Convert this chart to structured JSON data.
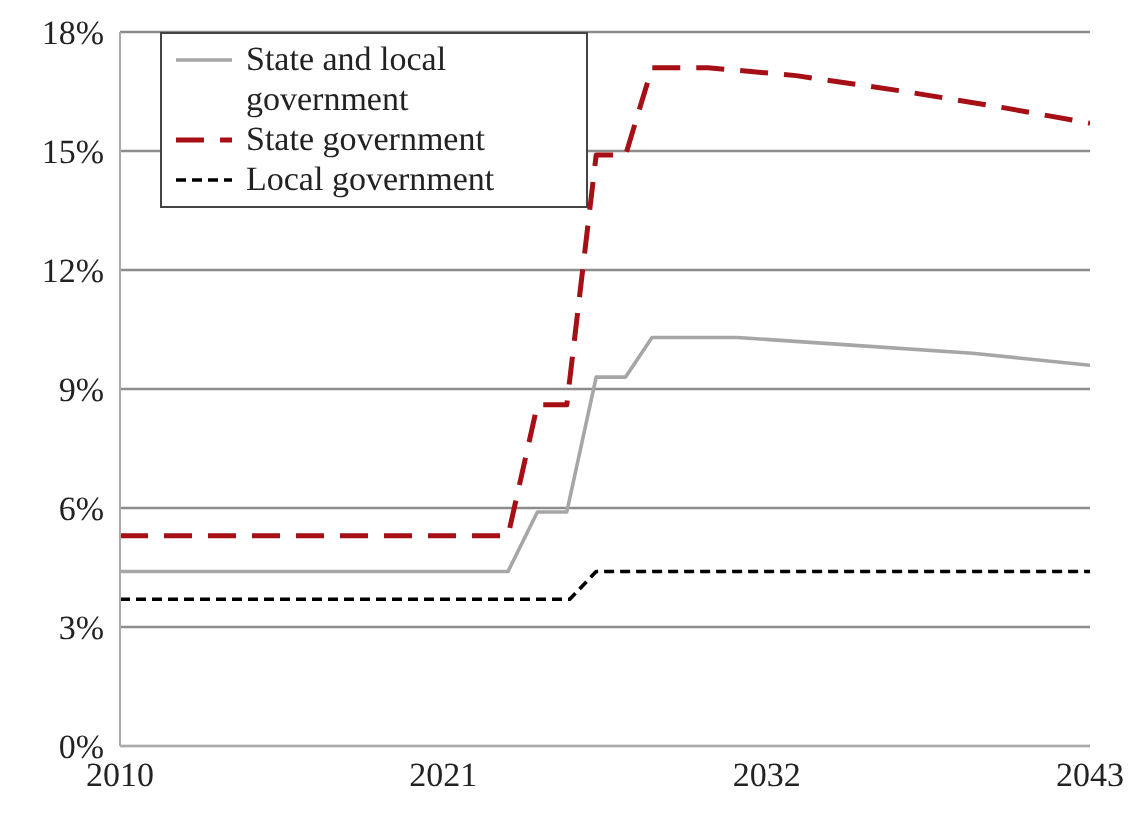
{
  "chart_data": {
    "type": "line",
    "xlim": [
      2010,
      2043
    ],
    "xticks": [
      2010,
      2021,
      2032,
      2043
    ],
    "ylim": [
      0,
      18
    ],
    "yticks": [
      {
        "value": 0,
        "label": "0%"
      },
      {
        "value": 3,
        "label": "3%"
      },
      {
        "value": 6,
        "label": "6%"
      },
      {
        "value": 9,
        "label": "9%"
      },
      {
        "value": 12,
        "label": "12%"
      },
      {
        "value": 15,
        "label": "15%"
      },
      {
        "value": 18,
        "label": "18%"
      }
    ],
    "grid": "y",
    "legend": "top left",
    "series": [
      {
        "name": "State and local government",
        "color": "#a6a6a6",
        "line_style": "solid",
        "x": [
          2010,
          2023.2,
          2024.2,
          2025.2,
          2026.2,
          2027.2,
          2028.1,
          2031,
          2035,
          2039,
          2043
        ],
        "values": [
          4.4,
          4.4,
          5.9,
          5.9,
          9.3,
          9.3,
          10.3,
          10.3,
          10.1,
          9.9,
          9.6
        ]
      },
      {
        "name": "State government",
        "color": "#a50f15",
        "line_style": "dashed",
        "x": [
          2010,
          2023.2,
          2024.2,
          2025.2,
          2026.2,
          2027.2,
          2028.1,
          2030,
          2033,
          2036.7,
          2040,
          2043
        ],
        "values": [
          5.3,
          5.3,
          8.6,
          8.6,
          14.9,
          14.9,
          17.1,
          17.1,
          16.9,
          16.5,
          16.1,
          15.7
        ]
      },
      {
        "name": "Local government",
        "color": "#000000",
        "line_style": "dashed",
        "x": [
          2010,
          2025.3,
          2026.2,
          2043
        ],
        "values": [
          3.7,
          3.7,
          4.4,
          4.4
        ]
      }
    ]
  }
}
